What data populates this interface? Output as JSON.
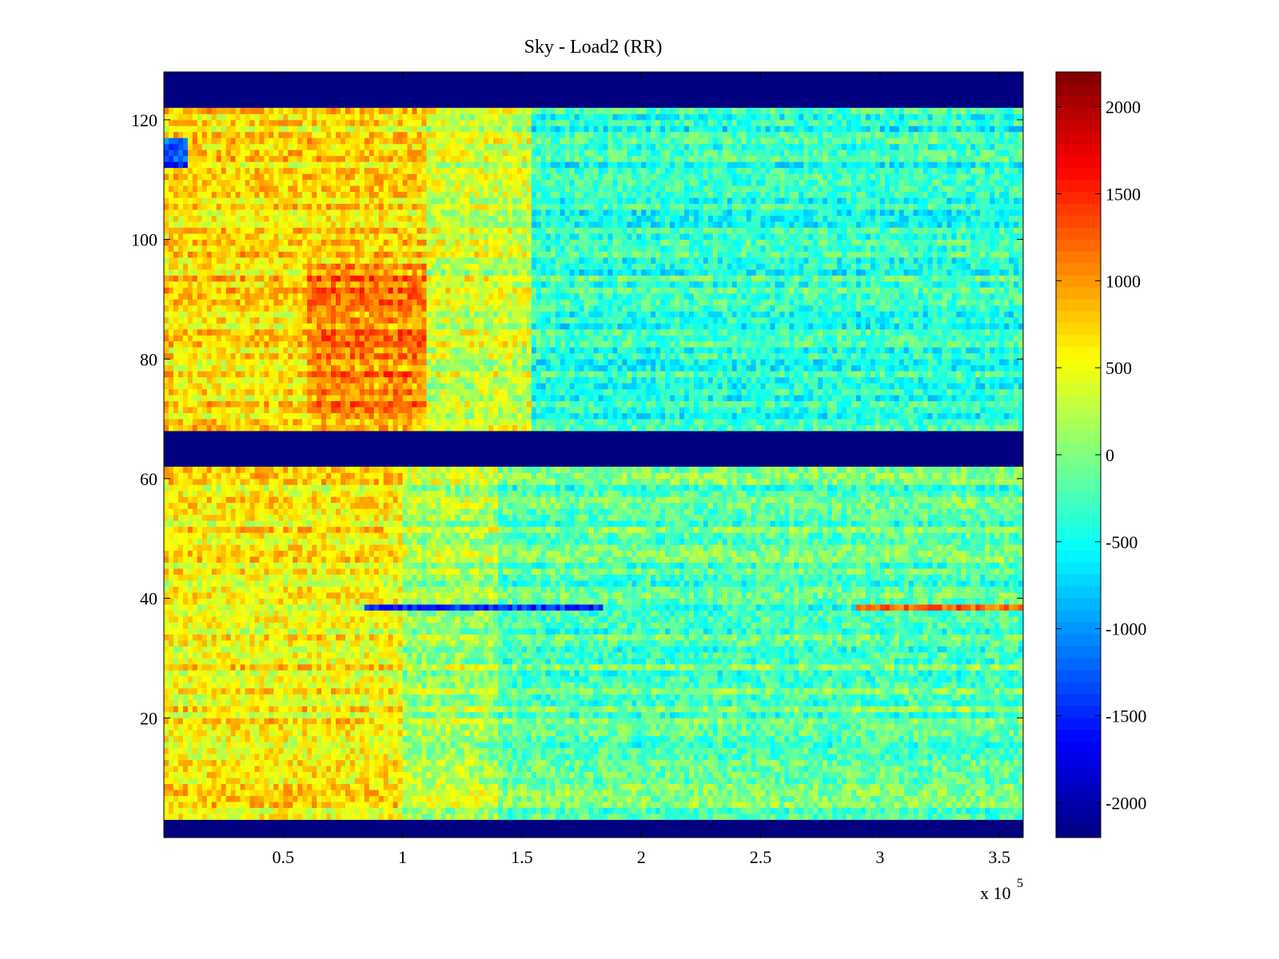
{
  "chart_data": {
    "type": "heatmap",
    "title": "Sky - Load2 (RR)",
    "xlabel": "",
    "ylabel": "",
    "x_exponent_label": {
      "base": "x 10",
      "exponent": "5"
    },
    "xlim": [
      0,
      360000
    ],
    "ylim": [
      0,
      128
    ],
    "x_ticks": [
      {
        "value": 50000,
        "label": "0.5"
      },
      {
        "value": 100000,
        "label": "1"
      },
      {
        "value": 150000,
        "label": "1.5"
      },
      {
        "value": 200000,
        "label": "2"
      },
      {
        "value": 250000,
        "label": "2.5"
      },
      {
        "value": 300000,
        "label": "3"
      },
      {
        "value": 350000,
        "label": "3.5"
      }
    ],
    "y_ticks": [
      {
        "value": 20,
        "label": "20"
      },
      {
        "value": 40,
        "label": "40"
      },
      {
        "value": 60,
        "label": "60"
      },
      {
        "value": 80,
        "label": "80"
      },
      {
        "value": 100,
        "label": "100"
      },
      {
        "value": 120,
        "label": "120"
      }
    ],
    "colorbar": {
      "colormap": "jet",
      "clim": [
        -2200,
        2200
      ],
      "ticks": [
        {
          "value": 2000,
          "label": "2000"
        },
        {
          "value": 1500,
          "label": "1500"
        },
        {
          "value": 1000,
          "label": "1000"
        },
        {
          "value": 500,
          "label": "500"
        },
        {
          "value": 0,
          "label": "0"
        },
        {
          "value": -500,
          "label": "-500"
        },
        {
          "value": -1000,
          "label": "-1000"
        },
        {
          "value": -1500,
          "label": "-1500"
        },
        {
          "value": -2000,
          "label": "-2000"
        }
      ]
    },
    "masked_channel_ranges": [
      [
        0,
        3
      ],
      [
        62,
        68
      ],
      [
        122,
        128
      ]
    ],
    "masked_value": -2200,
    "regions": [
      {
        "x": [
          0,
          110000
        ],
        "y": [
          68,
          122
        ],
        "value": 700
      },
      {
        "x": [
          60000,
          110000
        ],
        "y": [
          70,
          96
        ],
        "value": 1100
      },
      {
        "x": [
          110000,
          155000
        ],
        "y": [
          68,
          122
        ],
        "value": 350
      },
      {
        "x": [
          155000,
          360000
        ],
        "y": [
          68,
          122
        ],
        "value": -350
      },
      {
        "x": [
          0,
          100000
        ],
        "y": [
          3,
          62
        ],
        "value": 600
      },
      {
        "x": [
          100000,
          140000
        ],
        "y": [
          3,
          62
        ],
        "value": 200
      },
      {
        "x": [
          140000,
          360000
        ],
        "y": [
          3,
          62
        ],
        "value": -150
      }
    ],
    "features": [
      {
        "x": [
          85000,
          185000
        ],
        "y": [
          38.5,
          39.5
        ],
        "value": -1200,
        "description_value_only": true
      },
      {
        "x": [
          290000,
          360000
        ],
        "y": [
          38.5,
          39.5
        ],
        "value": 1500
      },
      {
        "x": [
          0,
          10000
        ],
        "y": [
          112,
          117
        ],
        "value": -1300
      }
    ],
    "grid": false,
    "legend": "none"
  }
}
